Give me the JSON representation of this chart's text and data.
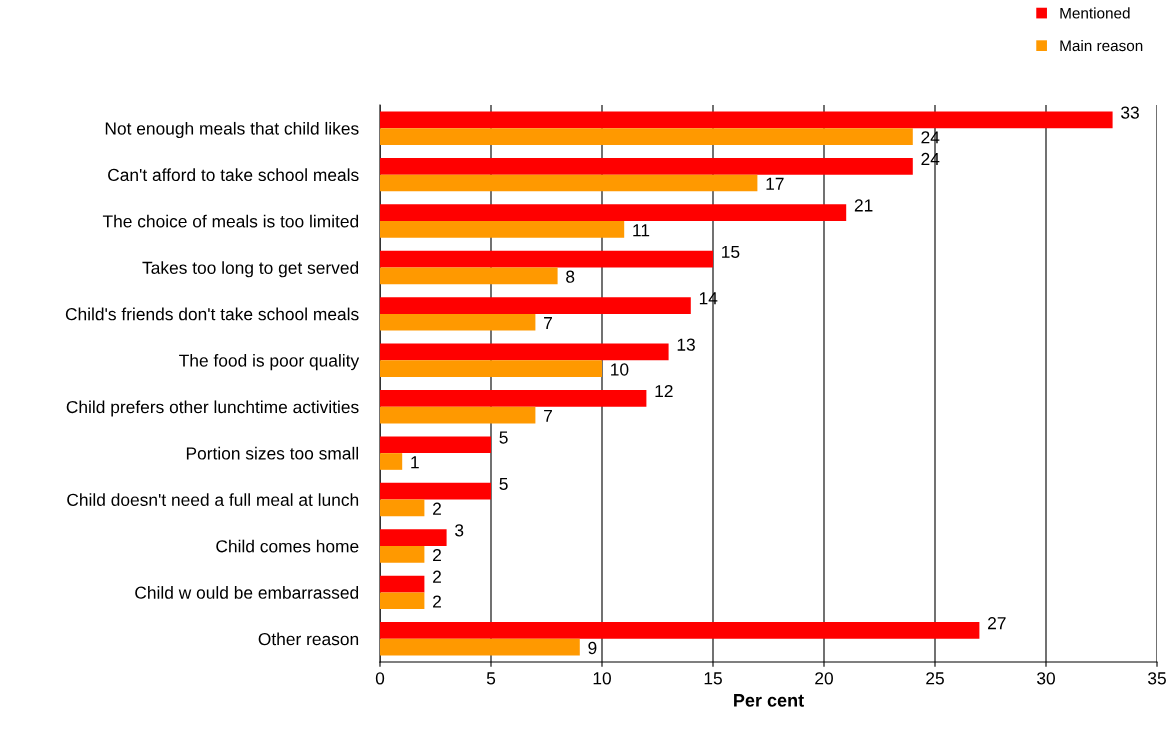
{
  "chart_data": {
    "type": "bar",
    "orientation": "horizontal",
    "xlabel": "Per cent",
    "categories": [
      "Not enough meals that child likes",
      "Can't afford to take school meals",
      "The choice of meals is too limited",
      "Takes too long to get served",
      "Child's friends don't take school meals",
      "The food is poor quality",
      "Child prefers other lunchtime activities",
      "Portion sizes too small",
      "Child doesn't need a full meal at lunch",
      "Child comes home",
      "Child w ould be embarrassed",
      "Other reason"
    ],
    "series": [
      {
        "name": "Mentioned",
        "color": "#ff0000",
        "values": [
          33,
          24,
          21,
          15,
          14,
          13,
          12,
          5,
          5,
          3,
          2,
          27
        ]
      },
      {
        "name": "Main reason",
        "color": "#ff9900",
        "values": [
          24,
          17,
          11,
          8,
          7,
          10,
          7,
          1,
          2,
          2,
          2,
          9
        ]
      }
    ],
    "xlim": [
      0,
      35
    ],
    "xticks": [
      0,
      5,
      10,
      15,
      20,
      25,
      30,
      35
    ],
    "grid": "x",
    "legend": "top right",
    "data_labels": true
  }
}
